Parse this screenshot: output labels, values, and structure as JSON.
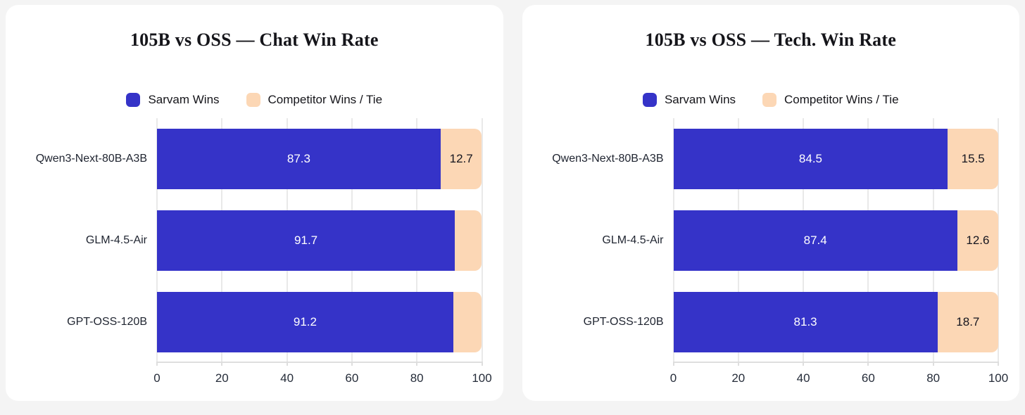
{
  "page": {
    "background": "#f4f4f4",
    "card_background": "#ffffff"
  },
  "colors": {
    "sarvam_blue": "#3533c8",
    "competitor_peach": "#fcd7b5",
    "gridline": "#e9e9e9",
    "axis_line": "#dedede",
    "title_text": "#15151a",
    "category_text": "#1f2430",
    "tick_text": "#262d3a",
    "label_on_blue": "#ffffff",
    "label_on_peach": "#15151f"
  },
  "chart_data": [
    {
      "type": "bar",
      "orientation": "horizontal",
      "stacked": true,
      "title": "105B vs OSS — Chat Win Rate",
      "categories": [
        "Qwen3-Next-80B-A3B",
        "GLM-4.5-Air",
        "GPT-OSS-120B"
      ],
      "series": [
        {
          "name": "Sarvam Wins",
          "color": "#3533c8",
          "values": [
            87.3,
            91.7,
            91.2
          ],
          "labels": [
            "87.3",
            "91.7",
            "91.2"
          ]
        },
        {
          "name": "Competitor Wins / Tie",
          "color": "#fcd7b5",
          "values": [
            12.7,
            8.3,
            8.8
          ],
          "labels": [
            "12.7",
            "",
            ""
          ]
        }
      ],
      "xlim": [
        0,
        100
      ],
      "x_ticks": [
        0,
        20,
        40,
        60,
        80,
        100
      ],
      "grid": true,
      "legend_position": "top-center"
    },
    {
      "type": "bar",
      "orientation": "horizontal",
      "stacked": true,
      "title": "105B vs OSS — Tech. Win Rate",
      "categories": [
        "Qwen3-Next-80B-A3B",
        "GLM-4.5-Air",
        "GPT-OSS-120B"
      ],
      "series": [
        {
          "name": "Sarvam Wins",
          "color": "#3533c8",
          "values": [
            84.5,
            87.4,
            81.3
          ],
          "labels": [
            "84.5",
            "87.4",
            "81.3"
          ]
        },
        {
          "name": "Competitor Wins / Tie",
          "color": "#fcd7b5",
          "values": [
            15.5,
            12.6,
            18.7
          ],
          "labels": [
            "15.5",
            "12.6",
            "18.7"
          ]
        }
      ],
      "xlim": [
        0,
        100
      ],
      "x_ticks": [
        0,
        20,
        40,
        60,
        80,
        100
      ],
      "grid": true,
      "legend_position": "top-center"
    }
  ]
}
